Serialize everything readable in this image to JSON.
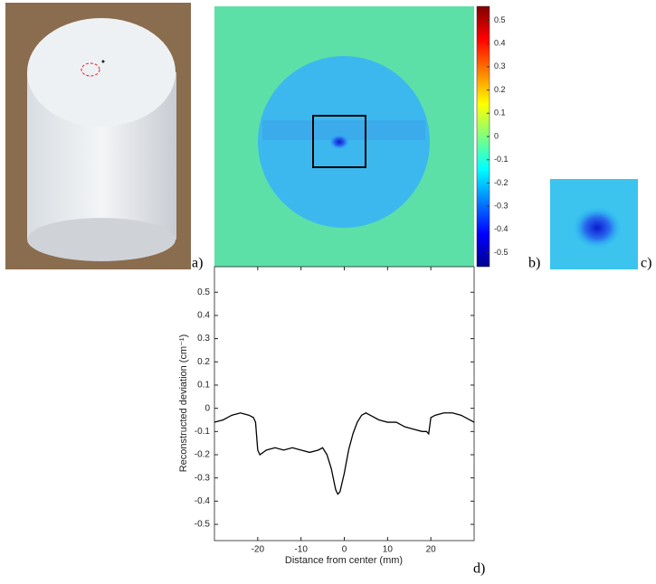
{
  "panel_labels": [
    "a)",
    "b)",
    "c)",
    "d)"
  ],
  "colorbar": {
    "lim": [
      -0.56,
      0.56
    ],
    "ticks": [
      0.5,
      0.4,
      0.3,
      0.2,
      0.1,
      0,
      -0.1,
      -0.2,
      -0.3,
      -0.4,
      -0.5
    ]
  },
  "chart_data": {
    "type": "line",
    "xlabel": "Distance from center (mm)",
    "ylabel": "Reconstructed deviation (cm⁻¹)",
    "xlim": [
      -30,
      30
    ],
    "xticks": [
      -20,
      -10,
      0,
      10,
      20
    ],
    "ylim": [
      -0.57,
      0.61
    ],
    "yticks": [
      0.5,
      0.4,
      0.3,
      0.2,
      0.1,
      0,
      -0.1,
      -0.2,
      -0.3,
      -0.4,
      -0.5
    ],
    "color": "#000000",
    "x": [
      -30,
      -28,
      -26,
      -24,
      -22,
      -21,
      -20.5,
      -20,
      -19.5,
      -18,
      -16,
      -14,
      -12,
      -10,
      -8,
      -6,
      -5,
      -4,
      -3,
      -2,
      -1.5,
      -1,
      0,
      1,
      2,
      3,
      4,
      5,
      6,
      8,
      10,
      12,
      14,
      16,
      18,
      19,
      19.5,
      20,
      21,
      23,
      25,
      27,
      30
    ],
    "values": [
      -0.06,
      -0.05,
      -0.03,
      -0.02,
      -0.03,
      -0.04,
      -0.06,
      -0.18,
      -0.2,
      -0.18,
      -0.17,
      -0.18,
      -0.17,
      -0.18,
      -0.19,
      -0.18,
      -0.17,
      -0.2,
      -0.26,
      -0.35,
      -0.37,
      -0.36,
      -0.28,
      -0.18,
      -0.11,
      -0.06,
      -0.03,
      -0.02,
      -0.03,
      -0.05,
      -0.06,
      -0.06,
      -0.08,
      -0.09,
      -0.1,
      -0.1,
      -0.11,
      -0.04,
      -0.03,
      -0.02,
      -0.02,
      -0.03,
      -0.06
    ]
  }
}
